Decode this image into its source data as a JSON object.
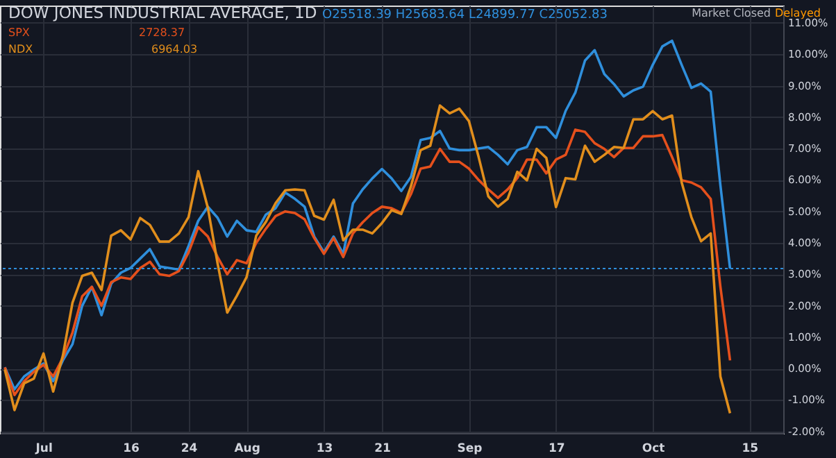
{
  "chart_data": {
    "type": "line",
    "title": "DOW JONES INDUSTRIAL AVERAGE, 1D",
    "categories": [
      null,
      null,
      null,
      null,
      "Jul",
      null,
      null,
      null,
      null,
      null,
      null,
      null,
      null,
      "16",
      null,
      null,
      null,
      null,
      null,
      "24",
      null,
      null,
      null,
      null,
      null,
      "Aug",
      null,
      null,
      null,
      null,
      null,
      null,
      null,
      "13",
      null,
      null,
      null,
      null,
      null,
      "21",
      null,
      null,
      null,
      null,
      null,
      null,
      null,
      null,
      "Sep",
      null,
      null,
      null,
      null,
      null,
      null,
      null,
      null,
      "17",
      null,
      null,
      null,
      null,
      null,
      null,
      null,
      null,
      null,
      "Oct",
      null,
      null,
      null,
      null,
      null,
      null,
      null,
      null,
      null,
      "15",
      null,
      null,
      null
    ],
    "series": [
      {
        "color": "#2f8fdc",
        "values": [
          0.04,
          -0.66,
          -0.25,
          -0.03,
          0.16,
          -0.4,
          0.26,
          0.78,
          2.0,
          2.6,
          1.7,
          2.7,
          3.05,
          3.2,
          3.5,
          3.8,
          3.25,
          3.2,
          3.15,
          3.9,
          4.7,
          5.15,
          4.8,
          4.2,
          4.7,
          4.4,
          4.35,
          4.9,
          5.1,
          5.6,
          5.4,
          5.15,
          4.2,
          3.7,
          4.2,
          3.65,
          5.25,
          5.7,
          6.05,
          6.35,
          6.05,
          5.65,
          6.1,
          7.27,
          7.34,
          7.56,
          7.0,
          6.95,
          6.95,
          7.0,
          7.05,
          6.8,
          6.5,
          6.95,
          7.05,
          7.68,
          7.68,
          7.34,
          8.2,
          8.78,
          9.8,
          10.13,
          9.37,
          9.05,
          8.66,
          8.85,
          8.97,
          9.66,
          10.25,
          10.43,
          9.66,
          8.93,
          9.07,
          8.81,
          5.84,
          3.18,
          null,
          null,
          null,
          null,
          null
        ]
      },
      {
        "name": "SPX",
        "color": "#e5501c",
        "values": [
          0.04,
          -0.84,
          -0.4,
          -0.1,
          0.12,
          -0.25,
          0.34,
          1.15,
          2.3,
          2.6,
          2.0,
          2.75,
          2.9,
          2.85,
          3.2,
          3.4,
          3.0,
          2.95,
          3.1,
          3.7,
          4.5,
          4.2,
          3.55,
          3.0,
          3.45,
          3.35,
          4.0,
          4.45,
          4.85,
          5.0,
          4.95,
          4.75,
          4.15,
          3.65,
          4.15,
          3.55,
          4.3,
          4.65,
          4.95,
          5.15,
          5.1,
          4.95,
          5.55,
          6.36,
          6.43,
          6.99,
          6.58,
          6.58,
          6.36,
          6.0,
          5.7,
          5.43,
          5.7,
          6.06,
          6.65,
          6.65,
          6.21,
          6.65,
          6.8,
          7.6,
          7.53,
          7.17,
          6.99,
          6.73,
          7.02,
          7.02,
          7.39,
          7.39,
          7.43,
          6.73,
          5.99,
          5.92,
          5.77,
          5.4,
          2.61,
          0.26,
          null,
          null,
          null,
          null,
          null
        ]
      },
      {
        "name": "NDX",
        "color": "#e18e1c",
        "values": [
          -0.03,
          -1.32,
          -0.47,
          -0.32,
          0.48,
          -0.73,
          0.41,
          2.1,
          2.95,
          3.05,
          2.5,
          4.23,
          4.4,
          4.11,
          4.79,
          4.57,
          4.04,
          4.04,
          4.3,
          4.82,
          6.28,
          5.11,
          3.35,
          1.78,
          2.32,
          2.91,
          4.23,
          4.67,
          5.26,
          5.67,
          5.7,
          5.67,
          4.86,
          4.74,
          5.37,
          4.08,
          4.42,
          4.42,
          4.3,
          4.63,
          5.04,
          4.92,
          5.8,
          6.95,
          7.09,
          8.37,
          8.12,
          8.27,
          7.87,
          6.73,
          5.48,
          5.15,
          5.4,
          6.26,
          5.99,
          6.99,
          6.7,
          5.14,
          6.06,
          6.02,
          7.09,
          6.58,
          6.8,
          7.05,
          7.02,
          7.93,
          7.93,
          8.19,
          7.93,
          8.05,
          5.92,
          4.82,
          4.05,
          4.3,
          -0.25,
          -1.42,
          null,
          null,
          null,
          null,
          null
        ]
      }
    ],
    "ylim": [
      -2.05,
      11.55
    ],
    "yticks": [
      {
        "value": -2,
        "label": "-2.00%"
      },
      {
        "value": -1,
        "label": "-1.00%"
      },
      {
        "value": 0,
        "label": "0.00%"
      },
      {
        "value": 1,
        "label": "1.00%"
      },
      {
        "value": 2,
        "label": "2.00%"
      },
      {
        "value": 3,
        "label": "3.00%"
      },
      {
        "value": 4,
        "label": "4.00%"
      },
      {
        "value": 5,
        "label": "5.00%"
      },
      {
        "value": 6,
        "label": "6.00%"
      },
      {
        "value": 7,
        "label": "7.00%"
      },
      {
        "value": 8,
        "label": "8.00%"
      },
      {
        "value": 9,
        "label": "9.00%"
      },
      {
        "value": 10,
        "label": "10.00%"
      },
      {
        "value": 11,
        "label": "11.00%"
      }
    ],
    "ref_lines": [
      {
        "axis": "y",
        "value": 3.18,
        "color": "#2f8fdc",
        "line_style": "dotted"
      }
    ],
    "annotations": [
      "O25518.39 H25683.64 L24899.77 C25052.83",
      "Market Closed",
      "Delayed",
      "2728.37",
      "6964.03"
    ],
    "grid": true,
    "legend": "top left",
    "marker": "none",
    "line_style": "solid"
  }
}
